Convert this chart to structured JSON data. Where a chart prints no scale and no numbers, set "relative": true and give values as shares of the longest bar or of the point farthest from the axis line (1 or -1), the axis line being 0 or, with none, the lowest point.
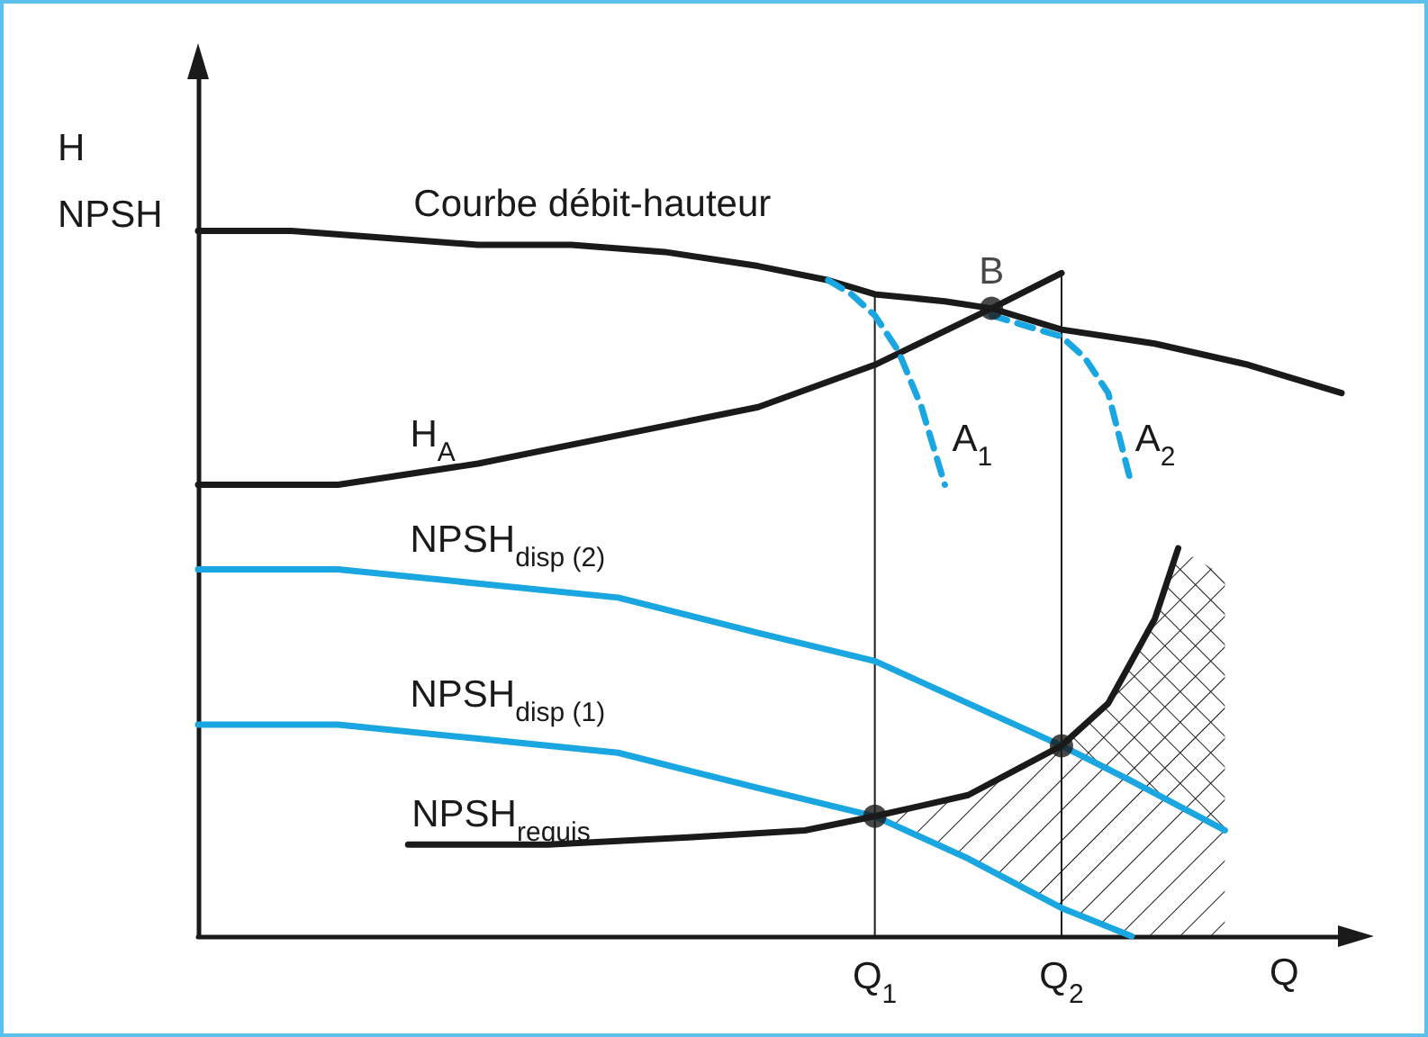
{
  "chart_data": {
    "type": "line",
    "relative": true,
    "ylabel": "H\nNPSH",
    "xlabel": "Q",
    "legend": false,
    "grid": false,
    "marker": "none",
    "annotations": [
      "B"
    ],
    "categories": [
      null,
      null,
      null,
      null,
      null,
      null,
      null,
      null,
      null,
      null,
      null,
      null,
      null,
      null,
      null,
      null,
      null,
      null,
      null,
      null,
      null,
      null,
      null,
      null,
      null,
      null,
      null,
      null,
      null,
      "Q$_{1}$",
      null,
      null,
      null,
      null,
      null,
      null,
      null,
      "Q$_{2}$",
      null,
      null,
      null,
      null,
      null,
      null,
      null,
      null,
      null,
      null,
      null,
      null
    ],
    "ref_lines": [
      {
        "axis": "x",
        "value": "Q$_{1}$",
        "color": "#1a1a1a"
      },
      {
        "axis": "x",
        "value": "Q$_{2}$",
        "color": "#1a1a1a"
      }
    ],
    "series": [
      {
        "name": "Courbe débit-hauteur",
        "color": "#1a1a1a",
        "values": [
          1.0,
          null,
          null,
          null,
          1.0,
          null,
          null,
          null,
          0.99,
          null,
          null,
          null,
          0.98,
          null,
          null,
          null,
          0.98,
          null,
          null,
          null,
          0.97,
          null,
          null,
          null,
          0.95,
          null,
          null,
          0.93,
          null,
          0.91,
          null,
          null,
          0.9,
          null,
          0.89,
          null,
          null,
          0.86,
          null,
          null,
          null,
          0.84,
          null,
          null,
          null,
          0.81,
          null,
          null,
          null,
          0.77
        ]
      },
      {
        "name": "H$_{A}$",
        "color": "#1a1a1a",
        "values": [
          0.64,
          null,
          null,
          null,
          null,
          null,
          0.64,
          null,
          null,
          null,
          null,
          null,
          0.67,
          null,
          null,
          null,
          null,
          null,
          0.71,
          null,
          null,
          null,
          null,
          null,
          0.75,
          null,
          null,
          null,
          null,
          0.81,
          null,
          null,
          null,
          null,
          0.89,
          null,
          null,
          0.94,
          null,
          null,
          null,
          null,
          null,
          null,
          null,
          null,
          null,
          null,
          null,
          null
        ]
      },
      {
        "name": "A$_{1}$",
        "color": "#1aa6e0",
        "line_style": "dashed",
        "values": [
          null,
          null,
          null,
          null,
          null,
          null,
          null,
          null,
          null,
          null,
          null,
          null,
          null,
          null,
          null,
          null,
          null,
          null,
          null,
          null,
          null,
          null,
          null,
          null,
          null,
          null,
          null,
          0.93,
          0.91,
          0.88,
          0.83,
          0.75,
          0.64,
          null,
          null,
          null,
          null,
          null,
          null,
          null,
          null,
          null,
          null,
          null,
          null,
          null,
          null,
          null,
          null,
          null
        ]
      },
      {
        "name": "A$_{2}$",
        "color": "#1aa6e0",
        "line_style": "dashed",
        "values": [
          null,
          null,
          null,
          null,
          null,
          null,
          null,
          null,
          null,
          null,
          null,
          null,
          null,
          null,
          null,
          null,
          null,
          null,
          null,
          null,
          null,
          null,
          null,
          null,
          null,
          null,
          null,
          null,
          null,
          null,
          null,
          null,
          null,
          null,
          0.88,
          0.87,
          0.86,
          0.85,
          0.82,
          0.77,
          0.64,
          null,
          null,
          null,
          null,
          null,
          null,
          null,
          null,
          null
        ]
      },
      {
        "name": "NPSH$_{disp (2)}$",
        "color": "#1aa6e0",
        "values": [
          0.52,
          null,
          null,
          null,
          null,
          null,
          0.52,
          null,
          null,
          null,
          null,
          null,
          0.5,
          null,
          null,
          null,
          null,
          null,
          0.48,
          null,
          null,
          null,
          null,
          null,
          0.43,
          null,
          null,
          null,
          null,
          0.39,
          null,
          null,
          null,
          0.33,
          null,
          null,
          null,
          0.27,
          null,
          null,
          0.22,
          null,
          null,
          null,
          0.15,
          null,
          null,
          null,
          null,
          null
        ]
      },
      {
        "name": "NPSH$_{disp (1)}$",
        "color": "#1aa6e0",
        "values": [
          0.3,
          null,
          null,
          null,
          null,
          null,
          0.3,
          null,
          null,
          null,
          null,
          null,
          0.28,
          null,
          null,
          null,
          null,
          null,
          0.26,
          null,
          null,
          null,
          null,
          null,
          0.21,
          null,
          null,
          null,
          null,
          0.17,
          null,
          null,
          null,
          0.11,
          null,
          null,
          null,
          0.04,
          null,
          null,
          0,
          null,
          null,
          null,
          null,
          null,
          null,
          null,
          null,
          null
        ]
      },
      {
        "name": "NPSH$_{requis}$",
        "color": "#1a1a1a",
        "values": [
          null,
          null,
          null,
          null,
          null,
          null,
          null,
          null,
          null,
          0.13,
          null,
          null,
          null,
          null,
          null,
          0.13,
          null,
          null,
          null,
          null,
          null,
          0.14,
          null,
          null,
          null,
          null,
          0.15,
          null,
          null,
          0.17,
          null,
          null,
          null,
          0.2,
          null,
          null,
          null,
          0.27,
          null,
          0.33,
          null,
          0.45,
          0.55,
          null,
          null,
          null,
          null,
          null,
          null,
          null
        ]
      },
      {
        "type": "scatter",
        "marker": "circle",
        "color": "#1a1a1a",
        "values": [
          null,
          null,
          null,
          null,
          null,
          null,
          null,
          null,
          null,
          null,
          null,
          null,
          null,
          null,
          null,
          null,
          null,
          null,
          null,
          null,
          null,
          null,
          null,
          null,
          null,
          null,
          null,
          null,
          null,
          0.17,
          null,
          null,
          null,
          null,
          0.89,
          null,
          null,
          0.27,
          null,
          null,
          null,
          null,
          null,
          null,
          null,
          null,
          null,
          null,
          null,
          null
        ]
      }
    ]
  }
}
